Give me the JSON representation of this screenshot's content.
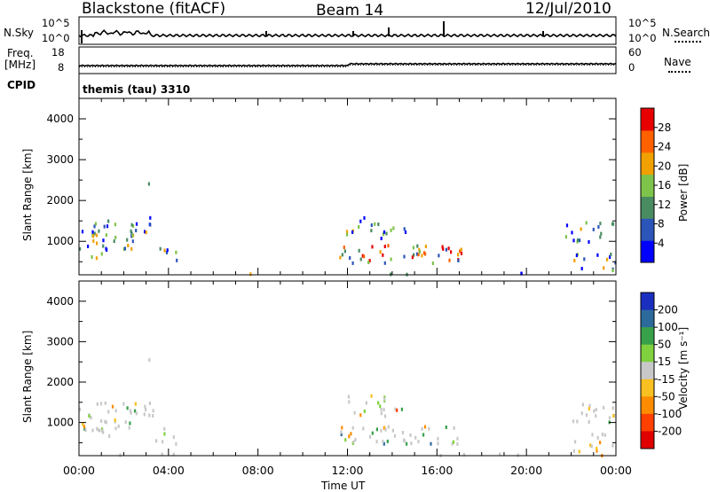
{
  "header": {
    "title": "Blackstone (fitACF)",
    "beam": "Beam 14",
    "date": "12/Jul/2010"
  },
  "aux_panels": {
    "nsky_label": "N.Sky",
    "nsearch_label": "N.Search",
    "noise_ticks": [
      "10^5",
      "10^0"
    ],
    "freq_label_top": "Freq.",
    "freq_label_unit": "[MHz]",
    "freq_ticks": [
      "18",
      "8"
    ],
    "nave_label": "Nave",
    "nave_ticks": [
      "60",
      "0"
    ],
    "cpid_label": "CPID",
    "cpid_text": "themis (tau) 3310"
  },
  "chart_data": [
    {
      "type": "heatmap",
      "name": "power",
      "ylabel": "Slant Range [km]",
      "yticks": [
        "4000",
        "3000",
        "2000",
        "1000"
      ],
      "ylim": [
        180,
        4500
      ],
      "colorbar_label": "Power [dB]",
      "colorbar_ticks": [
        "28",
        "24",
        "20",
        "16",
        "12",
        "8",
        "4"
      ],
      "colors": [
        "#0000ff",
        "#2b55b8",
        "#4a8c62",
        "#7ec34a",
        "#f0a000",
        "#ff6000",
        "#e80000"
      ]
    },
    {
      "type": "heatmap",
      "name": "velocity",
      "ylabel": "Slant Range [km]",
      "yticks": [
        "4000",
        "3000",
        "2000",
        "1000"
      ],
      "ylim": [
        180,
        4500
      ],
      "colorbar_label": "Velocity [m s⁻¹]",
      "colorbar_ticks": [
        "200",
        "100",
        "50",
        "15",
        "-15",
        "-50",
        "-100",
        "-200"
      ],
      "colors": [
        "#1a2fbf",
        "#2d6a9c",
        "#37a14a",
        "#7fd13e",
        "#c8c8c8",
        "#f8c020",
        "#ff8c00",
        "#ff4000",
        "#e00000"
      ]
    }
  ],
  "xaxis": {
    "label": "Time UT",
    "ticks": [
      "00:00",
      "04:00",
      "08:00",
      "12:00",
      "16:00",
      "20:00",
      "00:00"
    ]
  }
}
